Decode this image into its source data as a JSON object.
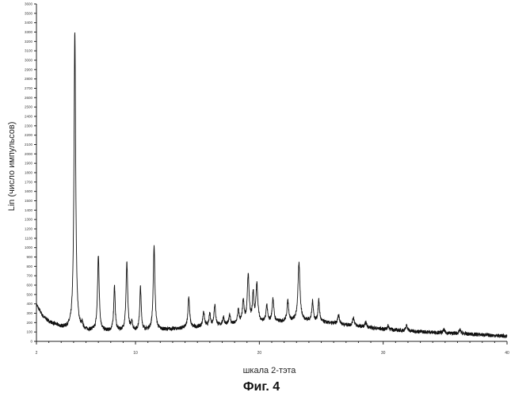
{
  "figure_caption": "Фиг. 4",
  "chart_data": {
    "type": "line",
    "xlabel": "шкала 2-тэта",
    "ylabel": "Lin (число импульсов)",
    "xlim": [
      2,
      40
    ],
    "ylim": [
      0,
      3600
    ],
    "x_ticks": [
      2,
      10,
      20,
      30,
      40
    ],
    "y_ticks": [
      0,
      100,
      200,
      300,
      400,
      500,
      600,
      700,
      800,
      900,
      1000,
      1100,
      1200,
      1300,
      1400,
      1500,
      1600,
      1700,
      1800,
      1900,
      2000,
      2100,
      2200,
      2300,
      2400,
      2500,
      2600,
      2700,
      2800,
      2900,
      3000,
      3100,
      3200,
      3300,
      3400,
      3500,
      3600
    ],
    "grid": false,
    "series": [
      {
        "color": "#111111",
        "baseline": [
          [
            2,
            390
          ],
          [
            2.5,
            270
          ],
          [
            3,
            210
          ],
          [
            4,
            150
          ],
          [
            5,
            120
          ],
          [
            6,
            110
          ],
          [
            8,
            105
          ],
          [
            10,
            110
          ],
          [
            12,
            120
          ],
          [
            14,
            140
          ],
          [
            16,
            160
          ],
          [
            18,
            180
          ],
          [
            20,
            200
          ],
          [
            22,
            210
          ],
          [
            24,
            220
          ],
          [
            26,
            190
          ],
          [
            28,
            160
          ],
          [
            30,
            130
          ],
          [
            32,
            110
          ],
          [
            35,
            90
          ],
          [
            38,
            70
          ],
          [
            40,
            55
          ]
        ],
        "peaks": [
          {
            "x": 5.1,
            "height": 3180,
            "width": 0.08
          },
          {
            "x": 5.7,
            "height": 50,
            "width": 0.06
          },
          {
            "x": 7.0,
            "height": 800,
            "width": 0.08
          },
          {
            "x": 8.3,
            "height": 480,
            "width": 0.07
          },
          {
            "x": 9.3,
            "height": 720,
            "width": 0.08
          },
          {
            "x": 9.7,
            "height": 100,
            "width": 0.06
          },
          {
            "x": 10.4,
            "height": 460,
            "width": 0.07
          },
          {
            "x": 11.5,
            "height": 900,
            "width": 0.08
          },
          {
            "x": 14.3,
            "height": 330,
            "width": 0.08
          },
          {
            "x": 15.5,
            "height": 160,
            "width": 0.08
          },
          {
            "x": 16.0,
            "height": 130,
            "width": 0.07
          },
          {
            "x": 16.4,
            "height": 220,
            "width": 0.08
          },
          {
            "x": 17.1,
            "height": 90,
            "width": 0.07
          },
          {
            "x": 17.6,
            "height": 110,
            "width": 0.07
          },
          {
            "x": 18.3,
            "height": 140,
            "width": 0.08
          },
          {
            "x": 18.7,
            "height": 230,
            "width": 0.08
          },
          {
            "x": 19.1,
            "height": 500,
            "width": 0.09
          },
          {
            "x": 19.5,
            "height": 300,
            "width": 0.07
          },
          {
            "x": 19.8,
            "height": 400,
            "width": 0.09
          },
          {
            "x": 20.6,
            "height": 180,
            "width": 0.07
          },
          {
            "x": 21.1,
            "height": 250,
            "width": 0.08
          },
          {
            "x": 22.3,
            "height": 220,
            "width": 0.08
          },
          {
            "x": 23.2,
            "height": 610,
            "width": 0.1
          },
          {
            "x": 24.3,
            "height": 210,
            "width": 0.07
          },
          {
            "x": 24.8,
            "height": 230,
            "width": 0.07
          },
          {
            "x": 26.4,
            "height": 100,
            "width": 0.08
          },
          {
            "x": 27.6,
            "height": 90,
            "width": 0.08
          },
          {
            "x": 28.6,
            "height": 50,
            "width": 0.08
          },
          {
            "x": 30.4,
            "height": 40,
            "width": 0.08
          },
          {
            "x": 31.9,
            "height": 60,
            "width": 0.08
          },
          {
            "x": 34.9,
            "height": 30,
            "width": 0.08
          },
          {
            "x": 36.2,
            "height": 40,
            "width": 0.08
          }
        ]
      }
    ]
  }
}
